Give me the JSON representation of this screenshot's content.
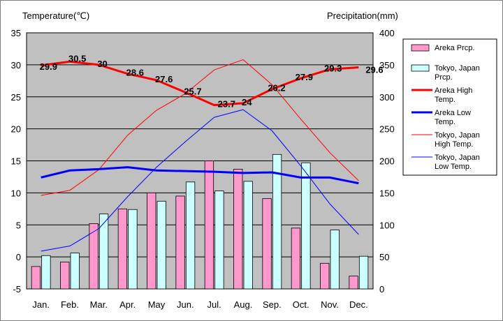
{
  "chart_data": {
    "type": "bar+line",
    "left_axis_title": "Temperature(℃)",
    "right_axis_title": "Precipitation(mm)",
    "categories": [
      "Jan.",
      "Feb.",
      "Mar.",
      "Apr.",
      "May",
      "Jun.",
      "Jul.",
      "Aug.",
      "Sep.",
      "Oct.",
      "Nov.",
      "Dec."
    ],
    "temp_axis": {
      "min": -5,
      "max": 35,
      "ticks": [
        35,
        30,
        25,
        20,
        15,
        10,
        5,
        0,
        -5
      ]
    },
    "prcp_axis": {
      "min": 0,
      "max": 400,
      "ticks": [
        400,
        350,
        300,
        250,
        200,
        150,
        100,
        50,
        0
      ]
    },
    "series": [
      {
        "name": "Areka Prcp.",
        "type": "bar",
        "axis": "prcp",
        "color": "#ff99cc",
        "values": [
          35,
          42,
          102,
          125,
          150,
          145,
          200,
          187,
          141,
          95,
          40,
          20
        ]
      },
      {
        "name": "Tokyo, Japan Prcp.",
        "type": "bar",
        "axis": "prcp",
        "color": "#ccffff",
        "values": [
          52,
          56,
          117,
          124,
          137,
          167,
          153,
          168,
          210,
          197,
          92,
          51
        ]
      },
      {
        "name": "Areka High Temp.",
        "type": "line",
        "axis": "temp",
        "color": "#ff0000",
        "width": 3,
        "values": [
          29.9,
          30.5,
          30,
          28.6,
          27.6,
          25.7,
          23.7,
          24,
          26.2,
          27.9,
          29.3,
          29.6
        ],
        "labels": [
          "29.9",
          "30.5",
          "30",
          "28.6",
          "27.6",
          "25.7",
          "23.7",
          "24",
          "26.2",
          "27.9",
          "29.3",
          "29.6"
        ]
      },
      {
        "name": "Areka Low Temp.",
        "type": "line",
        "axis": "temp",
        "color": "#0000ff",
        "width": 3,
        "values": [
          12.4,
          13.5,
          13.7,
          14.0,
          13.5,
          13.4,
          13.3,
          13.1,
          13.2,
          12.4,
          12.4,
          11.5
        ]
      },
      {
        "name": "Tokyo, Japan High Temp.",
        "type": "line",
        "axis": "temp",
        "color": "#ff0000",
        "width": 1,
        "values": [
          9.6,
          10.4,
          13.6,
          19.0,
          22.9,
          25.5,
          29.2,
          30.8,
          26.9,
          21.5,
          16.3,
          11.9
        ]
      },
      {
        "name": "Tokyo, Japan Low Temp.",
        "type": "line",
        "axis": "temp",
        "color": "#0000ff",
        "width": 1,
        "values": [
          0.9,
          1.7,
          4.4,
          9.4,
          14.0,
          18.0,
          21.8,
          23.0,
          19.7,
          14.2,
          8.3,
          3.5
        ]
      }
    ],
    "legend": [
      {
        "kind": "box",
        "color": "#ff99cc",
        "lines": [
          "Areka Prcp."
        ]
      },
      {
        "kind": "box",
        "color": "#ccffff",
        "lines": [
          "Tokyo, Japan",
          "Prcp."
        ]
      },
      {
        "kind": "line",
        "color": "#ff0000",
        "width": 3,
        "lines": [
          "Areka High",
          "Temp."
        ]
      },
      {
        "kind": "line",
        "color": "#0000ff",
        "width": 3,
        "lines": [
          "Areka Low",
          "Temp."
        ]
      },
      {
        "kind": "line",
        "color": "#ff0000",
        "width": 1,
        "lines": [
          "Tokyo, Japan",
          "High Temp."
        ]
      },
      {
        "kind": "line",
        "color": "#0000ff",
        "width": 1,
        "lines": [
          "Tokyo, Japan",
          "Low Temp."
        ]
      }
    ],
    "legend_position": "right",
    "grid": true,
    "plot_background": "#c0c0c0"
  }
}
